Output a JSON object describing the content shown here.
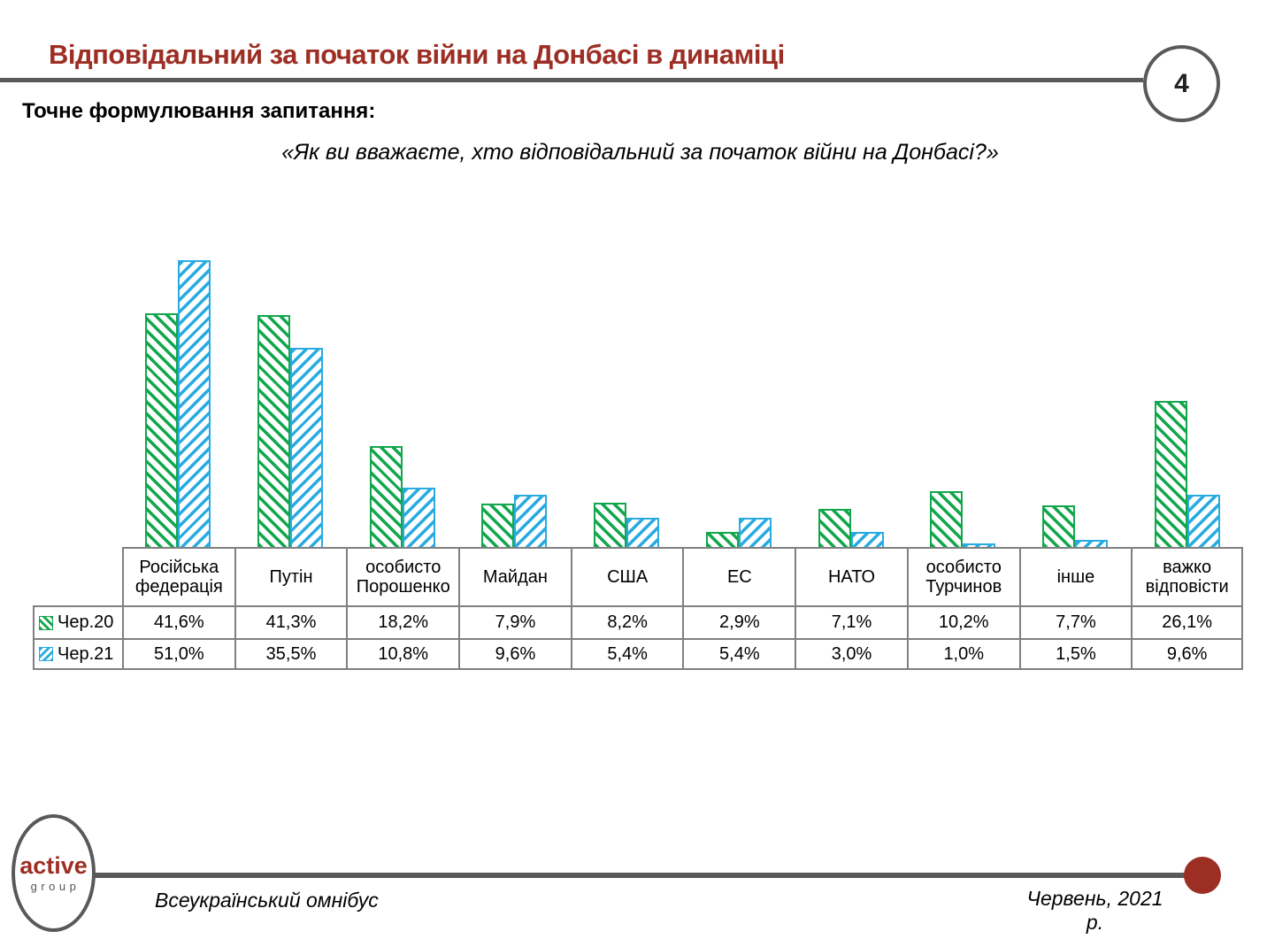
{
  "header": {
    "title": "Відповідальний за початок війни на Донбасі в динаміці",
    "page_number": "4"
  },
  "question": {
    "label": "Точне формулювання запитання:",
    "text": "«Як ви вважаєте,  хто відповідальний за початок війни на Донбасі?»"
  },
  "chart_data": {
    "type": "bar",
    "title": "Відповідальний за початок війни на Донбасі в динаміці",
    "categories": [
      "Російська федерація",
      "Путін",
      "особисто Порошенко",
      "Майдан",
      "США",
      "ЕС",
      "НАТО",
      "особисто Турчинов",
      "інше",
      "важко відповісти"
    ],
    "series": [
      {
        "name": "Чер.20",
        "color": "#12a74c",
        "hatch": "backslash",
        "values": [
          41.6,
          41.3,
          18.2,
          7.9,
          8.2,
          2.9,
          7.1,
          10.2,
          7.7,
          26.1
        ],
        "labels": [
          "41,6%",
          "41,3%",
          "18,2%",
          "7,9%",
          "8,2%",
          "2,9%",
          "7,1%",
          "10,2%",
          "7,7%",
          "26,1%"
        ]
      },
      {
        "name": "Чер.21",
        "color": "#29abe2",
        "hatch": "slash",
        "values": [
          51.0,
          35.5,
          10.8,
          9.6,
          5.4,
          5.4,
          3.0,
          1.0,
          1.5,
          9.6
        ],
        "labels": [
          "51,0%",
          "35,5%",
          "10,8%",
          "9,6%",
          "5,4%",
          "5,4%",
          "3,0%",
          "1,0%",
          "1,5%",
          "9,6%"
        ]
      }
    ],
    "ylim": [
      0,
      56
    ],
    "grid": false,
    "legend_position": "table-left",
    "data_table_shown": true
  },
  "colors": {
    "accent_red": "#9c2e24",
    "line_gray": "#595959",
    "border_gray": "#808080",
    "series_green": "#12a74c",
    "series_blue": "#29abe2"
  },
  "footer": {
    "logo_primary": "active",
    "logo_secondary": "group",
    "left_text": "Всеукраїнський омнібус",
    "right_text": "Червень, 2021 р."
  }
}
